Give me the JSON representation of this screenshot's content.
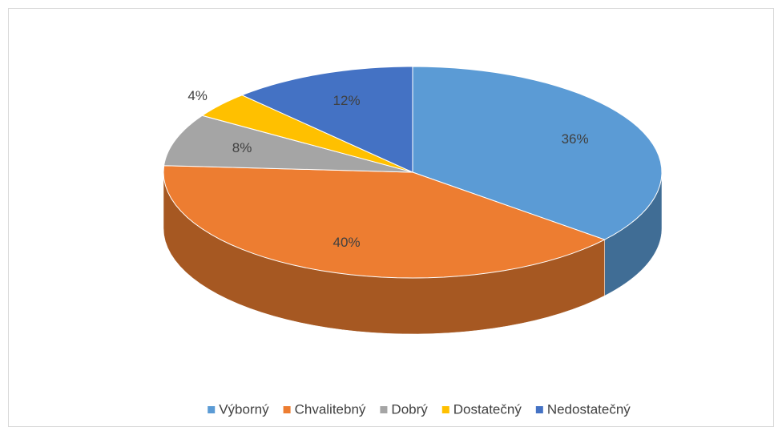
{
  "chart_data": {
    "type": "pie",
    "categories": [
      "Výborný",
      "Chvalitebný",
      "Dobrý",
      "Dostatečný",
      "Nedostatečný"
    ],
    "values": [
      36,
      40,
      8,
      4,
      12
    ],
    "value_labels": [
      "36%",
      "40%",
      "8%",
      "4%",
      "12%"
    ],
    "colors": [
      "#5b9bd5",
      "#ed7d31",
      "#a5a5a5",
      "#ffc000",
      "#4472c4"
    ],
    "legend": "bottom"
  }
}
